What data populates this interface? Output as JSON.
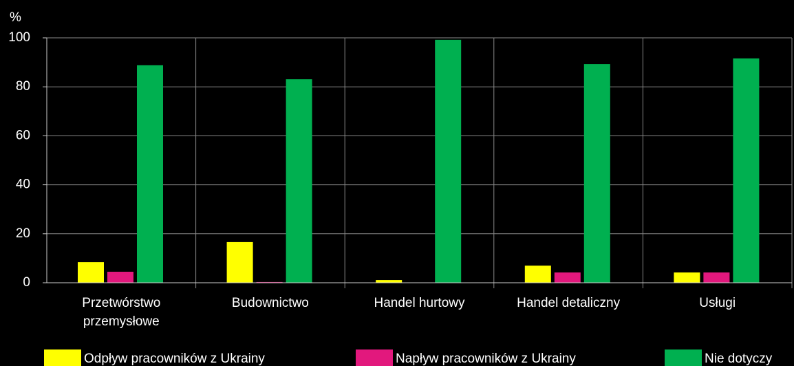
{
  "chart_data": {
    "type": "bar",
    "y_label": "%",
    "categories": [
      "Przetwórstwo przemysłowe",
      "Budownictwo",
      "Handel hurtowy",
      "Handel detaliczny",
      "Usługi"
    ],
    "series": [
      {
        "name": "Odpływ pracowników z Ukrainy",
        "color": "#ffff00",
        "values": [
          8.4,
          16.6,
          1.1,
          7.0,
          4.2
        ]
      },
      {
        "name": "Napływ pracowników z Ukrainy",
        "color": "#e2187d",
        "values": [
          4.5,
          0.3,
          0,
          4.2,
          4.2
        ]
      },
      {
        "name": "Nie dotyczy",
        "color": "#00b050",
        "values": [
          88.8,
          83.1,
          99.2,
          89.3,
          91.6
        ]
      }
    ],
    "ylim": [
      0,
      100
    ],
    "yticks": [
      0,
      20,
      40,
      60,
      80,
      100
    ],
    "grid": true,
    "legend": "bottom"
  }
}
